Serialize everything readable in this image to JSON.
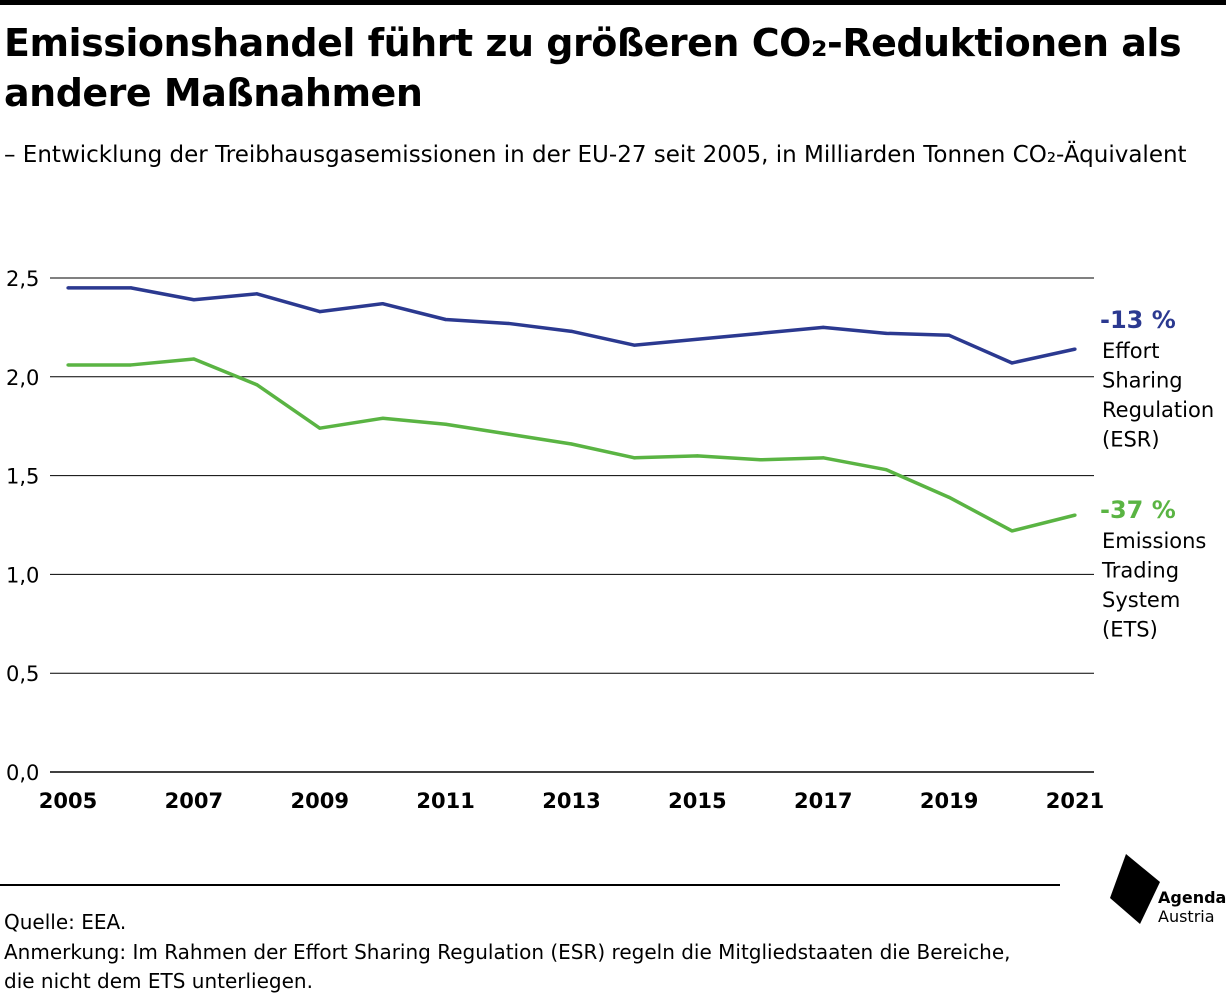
{
  "title": "Emissionshandel führt zu größeren CO₂-Reduktionen als andere Maßnahmen",
  "subtitle": "– Entwicklung der Treibhausgasemissionen in der EU-27 seit 2005, in Milliarden Tonnen CO₂-Äquivalent",
  "chart_data": {
    "type": "line",
    "x": [
      2005,
      2006,
      2007,
      2008,
      2009,
      2010,
      2011,
      2012,
      2013,
      2014,
      2015,
      2016,
      2017,
      2018,
      2019,
      2020,
      2021
    ],
    "x_tick_labels": [
      "2005",
      "2007",
      "2009",
      "2011",
      "2013",
      "2015",
      "2017",
      "2019",
      "2021"
    ],
    "x_tick_values": [
      2005,
      2007,
      2009,
      2011,
      2013,
      2015,
      2017,
      2019,
      2021
    ],
    "y_tick_labels": [
      "0,0",
      "0,5",
      "1,0",
      "1,5",
      "2,0",
      "2,5"
    ],
    "y_tick_values": [
      0,
      0.5,
      1.0,
      1.5,
      2.0,
      2.5
    ],
    "ylim": [
      0,
      2.5
    ],
    "xlim": [
      2005,
      2021
    ],
    "grid": "horizontal",
    "series": [
      {
        "key": "esr",
        "pct": "-13 %",
        "label_lines": [
          "Effort",
          "Sharing",
          "Regulation",
          "(ESR)"
        ],
        "color": "#2b3990",
        "values": [
          2.45,
          2.45,
          2.39,
          2.42,
          2.33,
          2.37,
          2.29,
          2.27,
          2.23,
          2.16,
          2.19,
          2.22,
          2.25,
          2.22,
          2.21,
          2.07,
          2.14
        ]
      },
      {
        "key": "ets",
        "pct": "-37 %",
        "label_lines": [
          "Emissions",
          "Trading",
          "System",
          "(ETS)"
        ],
        "color": "#5ab443",
        "values": [
          2.06,
          2.06,
          2.09,
          1.96,
          1.74,
          1.79,
          1.76,
          1.71,
          1.66,
          1.59,
          1.6,
          1.58,
          1.59,
          1.53,
          1.39,
          1.22,
          1.3
        ]
      }
    ]
  },
  "source": "Quelle: EEA.",
  "note": "Anmerkung: Im Rahmen der Effort Sharing Regulation (ESR) regeln die Mitgliedstaaten die Bereiche, die nicht dem ETS unterliegen.",
  "logo": {
    "line1": "Agenda",
    "line2": "Austria",
    "icon": "agenda-austria-logo-icon"
  }
}
